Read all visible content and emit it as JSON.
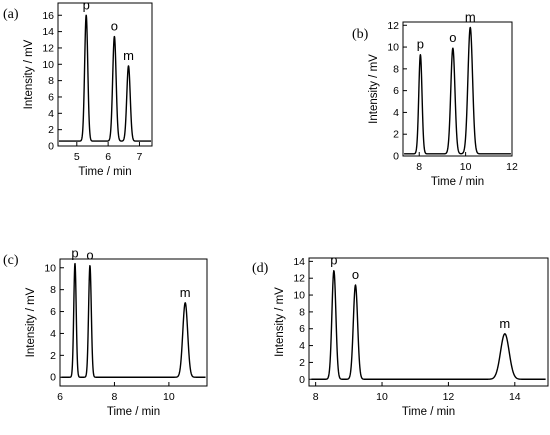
{
  "chart_data": [
    {
      "panel": "(a)",
      "type": "line",
      "xlabel": "Time / min",
      "ylabel": "Intensity / mV",
      "xlim": [
        4.4,
        7.4
      ],
      "ylim": [
        0,
        17.5
      ],
      "xticks": [
        5,
        6,
        7
      ],
      "yticks": [
        0,
        2,
        4,
        6,
        8,
        10,
        12,
        14,
        16
      ],
      "baseline": 0.6,
      "peaks": [
        {
          "label": "p",
          "time": 5.3,
          "height": 16.0,
          "width": 0.05
        },
        {
          "label": "o",
          "time": 6.2,
          "height": 13.4,
          "width": 0.055
        },
        {
          "label": "m",
          "time": 6.65,
          "height": 9.8,
          "width": 0.055
        }
      ]
    },
    {
      "panel": "(b)",
      "type": "line",
      "xlabel": "Time / min",
      "ylabel": "Intensity / mV",
      "xlim": [
        7.3,
        12
      ],
      "ylim": [
        0,
        12.3
      ],
      "xticks": [
        8,
        10,
        12
      ],
      "yticks": [
        0,
        2,
        4,
        6,
        8,
        10,
        12
      ],
      "baseline": 0.2,
      "peaks": [
        {
          "label": "p",
          "time": 8.05,
          "height": 9.3,
          "width": 0.07
        },
        {
          "label": "o",
          "time": 9.45,
          "height": 9.9,
          "width": 0.09
        },
        {
          "label": "m",
          "time": 10.2,
          "height": 11.8,
          "width": 0.1
        }
      ]
    },
    {
      "panel": "(c)",
      "type": "line",
      "xlabel": "Time / min",
      "ylabel": "Intensity / mV",
      "xlim": [
        6,
        11.4
      ],
      "ylim": [
        -0.8,
        10.8
      ],
      "xticks": [
        6,
        8,
        10
      ],
      "yticks": [
        0,
        2,
        4,
        6,
        8,
        10
      ],
      "baseline": 0.0,
      "peaks": [
        {
          "label": "p",
          "time": 6.55,
          "height": 10.4,
          "width": 0.045
        },
        {
          "label": "o",
          "time": 7.1,
          "height": 10.2,
          "width": 0.05
        },
        {
          "label": "m",
          "time": 10.6,
          "height": 6.8,
          "width": 0.09
        }
      ]
    },
    {
      "panel": "(d)",
      "type": "line",
      "xlabel": "Time / min",
      "ylabel": "Intensity / mV",
      "xlim": [
        7.8,
        15
      ],
      "ylim": [
        -0.8,
        14.4
      ],
      "xticks": [
        8,
        10,
        12,
        14
      ],
      "yticks": [
        0,
        2,
        4,
        6,
        8,
        10,
        12,
        14
      ],
      "baseline": 0.0,
      "peaks": [
        {
          "label": "p",
          "time": 8.55,
          "height": 12.9,
          "width": 0.06
        },
        {
          "label": "o",
          "time": 9.2,
          "height": 11.2,
          "width": 0.065
        },
        {
          "label": "m",
          "time": 13.7,
          "height": 5.4,
          "width": 0.13
        }
      ]
    }
  ]
}
